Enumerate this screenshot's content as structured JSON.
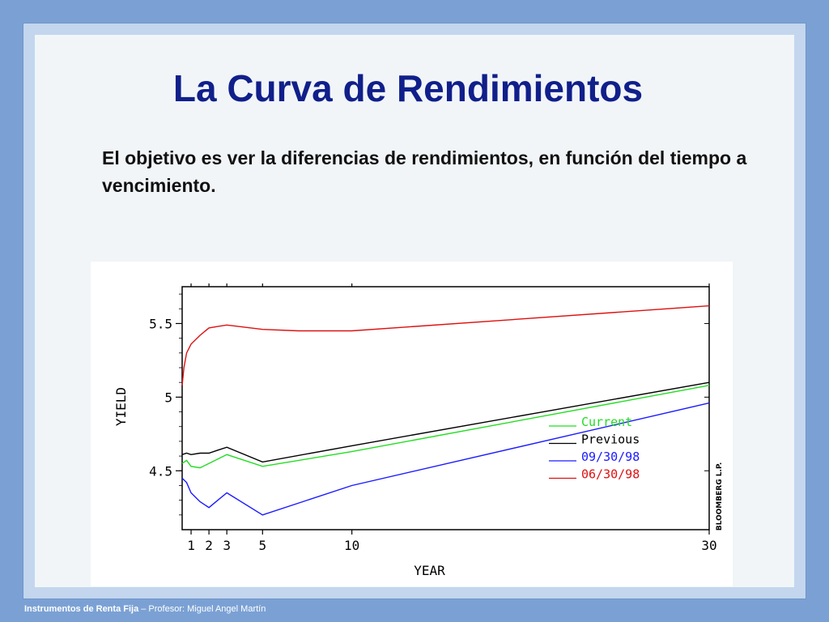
{
  "slide": {
    "title": "La Curva de Rendimientos",
    "body": "El objetivo es ver la diferencias de rendimientos, en función del tiempo a vencimiento.",
    "footer_bold": "Instrumentos de Renta Fija",
    "footer_rest": " – Profesor: Miguel Angel Martín"
  },
  "colors": {
    "background": "#7ba1d4",
    "title": "#101f8a",
    "current": "#22dd22",
    "previous": "#000000",
    "sep98": "#1a1aff",
    "jun98": "#dd1111"
  },
  "chart_data": {
    "type": "line",
    "xlabel": "YEAR",
    "ylabel": "YIELD",
    "watermark": "BLOOMBERG L.P.",
    "xlim": [
      0.5,
      30
    ],
    "ylim": [
      4.1,
      5.75
    ],
    "xticks": [
      1,
      2,
      3,
      5,
      10,
      30
    ],
    "yticks": [
      4.5,
      5,
      5.5
    ],
    "legend_position": "right",
    "series": [
      {
        "name": "Current",
        "color": "#22dd22",
        "x": [
          0.5,
          0.75,
          1,
          1.5,
          2,
          2.5,
          3,
          5,
          10,
          30
        ],
        "y": [
          4.55,
          4.57,
          4.53,
          4.52,
          4.55,
          4.58,
          4.61,
          4.53,
          4.63,
          5.08
        ]
      },
      {
        "name": "Previous",
        "color": "#000000",
        "x": [
          0.5,
          0.75,
          1,
          1.5,
          2,
          2.5,
          3,
          5,
          10,
          30
        ],
        "y": [
          4.61,
          4.62,
          4.61,
          4.62,
          4.62,
          4.64,
          4.66,
          4.56,
          4.67,
          5.1
        ]
      },
      {
        "name": "09/30/98",
        "color": "#1a1aff",
        "x": [
          0.5,
          0.75,
          1,
          1.5,
          2,
          2.5,
          3,
          5,
          10,
          30
        ],
        "y": [
          4.45,
          4.42,
          4.35,
          4.29,
          4.25,
          4.3,
          4.35,
          4.2,
          4.4,
          4.96
        ]
      },
      {
        "name": "06/30/98",
        "color": "#dd1111",
        "x": [
          0.5,
          0.6,
          0.75,
          1,
          1.5,
          2,
          2.5,
          3,
          5,
          7,
          10,
          30
        ],
        "y": [
          5.08,
          5.2,
          5.3,
          5.36,
          5.42,
          5.47,
          5.48,
          5.49,
          5.46,
          5.45,
          5.45,
          5.62
        ]
      }
    ]
  }
}
